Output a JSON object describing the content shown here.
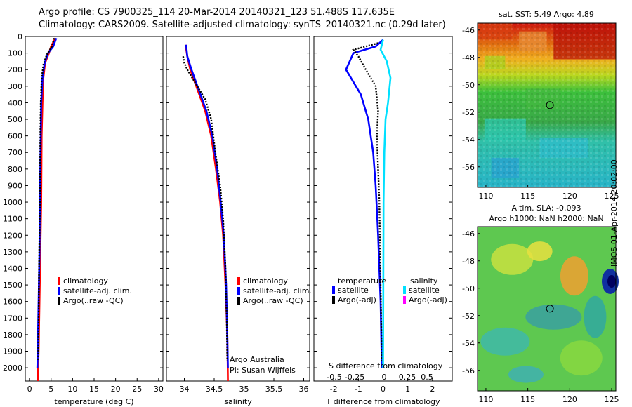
{
  "header": {
    "line1": "Argo profile: CS 7900325_114 20-Mar-2014 20140321_123 51.488S 117.635E",
    "line2": "Climatology: CARS2009. Satellite-adjusted climatology: synTS_20140321.nc (0.29d later)"
  },
  "colors": {
    "climatology": "#ff0000",
    "satellite": "#0000ff",
    "argo": "#000000",
    "sal_satellite": "#00e0ff",
    "sal_argo": "#ff00ff"
  },
  "chart_data": [
    {
      "type": "line",
      "id": "temperature",
      "xlabel": "temperature (deg C)",
      "xlim": [
        -1,
        31
      ],
      "ylim": [
        2080,
        0
      ],
      "xticks": [
        0,
        5,
        10,
        15,
        20,
        25,
        30
      ],
      "xticklabels": [
        "0",
        "5",
        "10",
        "15",
        "20",
        "25",
        "30"
      ],
      "yticks": [
        0,
        100,
        200,
        300,
        400,
        500,
        600,
        700,
        800,
        900,
        1000,
        1100,
        1200,
        1300,
        1400,
        1500,
        1600,
        1700,
        1800,
        1900,
        2000
      ],
      "yticklabels": [
        "0",
        "100",
        "200",
        "300",
        "400",
        "500",
        "600",
        "700",
        "800",
        "900",
        "1000",
        "1100",
        "1200",
        "1300",
        "1400",
        "1500",
        "1600",
        "1700",
        "1800",
        "1900",
        "2000"
      ],
      "legend": [
        "climatology",
        "satellite-adj. clim.",
        "Argo(..raw -QC)"
      ],
      "series": [
        {
          "name": "climatology",
          "color": "#ff0000",
          "x": [
            6.0,
            5.0,
            4.5,
            3.6,
            3.2,
            3.0,
            2.8,
            2.7,
            2.5,
            2.3,
            2.1,
            1.9
          ],
          "y": [
            10,
            60,
            100,
            160,
            250,
            400,
            600,
            1000,
            1300,
            1600,
            1900,
            2080
          ]
        },
        {
          "name": "satellite-adj. clim.",
          "color": "#0000ff",
          "x": [
            6.2,
            5.5,
            4.3,
            3.5,
            3.0,
            2.7,
            2.6,
            2.4,
            2.3,
            2.1,
            1.9,
            1.8
          ],
          "y": [
            10,
            60,
            100,
            160,
            250,
            400,
            600,
            1000,
            1300,
            1600,
            1900,
            2000
          ]
        },
        {
          "name": "Argo(..raw -QC)",
          "color": "#000000",
          "x": [
            5.7,
            5.2,
            4.0,
            3.2,
            2.8,
            2.6,
            2.5,
            2.4,
            2.2,
            2.1,
            2.0
          ],
          "y": [
            10,
            60,
            110,
            170,
            260,
            400,
            600,
            1000,
            1400,
            1700,
            1960
          ]
        }
      ]
    },
    {
      "type": "line",
      "id": "salinity",
      "xlabel": "salinity",
      "xlim": [
        33.7,
        36.1
      ],
      "ylim": [
        2080,
        0
      ],
      "xticks": [
        34,
        34.5,
        35,
        35.5,
        36
      ],
      "xticklabels": [
        "34",
        "34.5",
        "35",
        "35.5",
        "36"
      ],
      "legend": [
        "climatology",
        "satellite-adj. clim.",
        "Argo(..raw -QC)"
      ],
      "annotations": [
        "Argo Australia",
        "PI: Susan Wijffels"
      ],
      "series": [
        {
          "name": "climatology",
          "color": "#ff0000",
          "x": [
            34.02,
            34.05,
            34.1,
            34.2,
            34.35,
            34.45,
            34.53,
            34.6,
            34.65,
            34.69,
            34.72,
            34.73
          ],
          "y": [
            50,
            120,
            200,
            300,
            450,
            600,
            800,
            1000,
            1200,
            1500,
            1800,
            2080
          ]
        },
        {
          "name": "satellite-adj. clim.",
          "color": "#0000ff",
          "x": [
            34.03,
            34.05,
            34.12,
            34.22,
            34.37,
            34.47,
            34.55,
            34.61,
            34.66,
            34.7,
            34.72,
            34.73
          ],
          "y": [
            50,
            120,
            200,
            300,
            450,
            600,
            800,
            1000,
            1200,
            1500,
            1800,
            2000
          ]
        },
        {
          "name": "Argo(..raw -QC)",
          "color": "#000000",
          "x": [
            33.98,
            34.0,
            34.05,
            34.15,
            34.35,
            34.45,
            34.52,
            34.6,
            34.65,
            34.69,
            34.71,
            34.72
          ],
          "y": [
            120,
            160,
            200,
            260,
            380,
            500,
            700,
            900,
            1100,
            1400,
            1700,
            1960
          ]
        }
      ]
    },
    {
      "type": "line",
      "id": "difference",
      "xlabel": "T difference from climatology",
      "xlabel_top": "S difference from climatology",
      "xlim": [
        -2.8,
        2.8
      ],
      "ylim": [
        2080,
        0
      ],
      "xticks": [
        -2,
        -1,
        0,
        1,
        2
      ],
      "xticklabels": [
        "-2",
        "-1",
        "0",
        "1",
        "2"
      ],
      "xticks_top": [
        -0.5,
        -0.25,
        0,
        0.25,
        0.5
      ],
      "xticklabels_top": [
        "-0.5",
        "-0.25",
        "0",
        "0.25",
        "0.5"
      ],
      "legend_temperature_title": "temperature",
      "legend_salinity_title": "salinity",
      "legend_temperature": [
        "satellite",
        "Argo(-adj)"
      ],
      "legend_salinity": [
        "satellite",
        "Argo(-adj)"
      ],
      "series": [
        {
          "name": "temperature satellite",
          "color": "#0000ff",
          "x": [
            0,
            -0.3,
            -1.2,
            -1.5,
            -0.9,
            -0.6,
            -0.4,
            -0.3,
            -0.2,
            -0.1,
            -0.05
          ],
          "y": [
            20,
            60,
            100,
            200,
            350,
            500,
            700,
            900,
            1200,
            1600,
            2000
          ]
        },
        {
          "name": "temperature Argo(-adj)",
          "color": "#000000",
          "x": [
            -0.2,
            -1.2,
            -1.0,
            -0.7,
            -0.3,
            -0.2,
            -0.25,
            -0.15,
            -0.1,
            -0.05
          ],
          "y": [
            40,
            80,
            120,
            200,
            300,
            450,
            600,
            1000,
            1500,
            1960
          ]
        },
        {
          "name": "salinity satellite",
          "color": "#00e0ff",
          "x": [
            0,
            -0.1,
            0.15,
            0.3,
            0.2,
            0.1,
            0.05,
            0.02,
            0.01,
            0.0
          ],
          "y": [
            20,
            80,
            150,
            250,
            400,
            500,
            700,
            1000,
            1500,
            2000
          ]
        }
      ]
    },
    {
      "type": "heatmap",
      "id": "sst_map",
      "title": "sat. SST: 5.49 Argo: 4.89",
      "xlim": [
        109,
        125.5
      ],
      "ylim": [
        -57.5,
        -45.5
      ],
      "xticks": [
        110,
        115,
        120,
        125
      ],
      "xticklabels": [
        "110",
        "115",
        "120",
        "125"
      ],
      "yticks": [
        -46,
        -48,
        -50,
        -52,
        -54,
        -56
      ],
      "yticklabels": [
        "-46",
        "-48",
        "-50",
        "-52",
        "-54",
        "-56"
      ],
      "marker": {
        "lon": 117.635,
        "lat": -51.488
      }
    },
    {
      "type": "heatmap",
      "id": "sla_map",
      "title": "Altim. SLA: -0.093",
      "subtitle": "Argo h1000: NaN h2000: NaN",
      "xlim": [
        109,
        125.5
      ],
      "ylim": [
        -57.5,
        -45.5
      ],
      "xticks": [
        110,
        115,
        120,
        125
      ],
      "xticklabels": [
        "110",
        "115",
        "120",
        "125"
      ],
      "yticks": [
        -46,
        -48,
        -50,
        -52,
        -54,
        -56
      ],
      "yticklabels": [
        "-46",
        "-48",
        "-50",
        "-52",
        "-54",
        "-56"
      ],
      "marker": {
        "lon": 117.635,
        "lat": -51.488
      }
    }
  ],
  "credit": "IMOS 01-Apr-2014 20:02:00"
}
